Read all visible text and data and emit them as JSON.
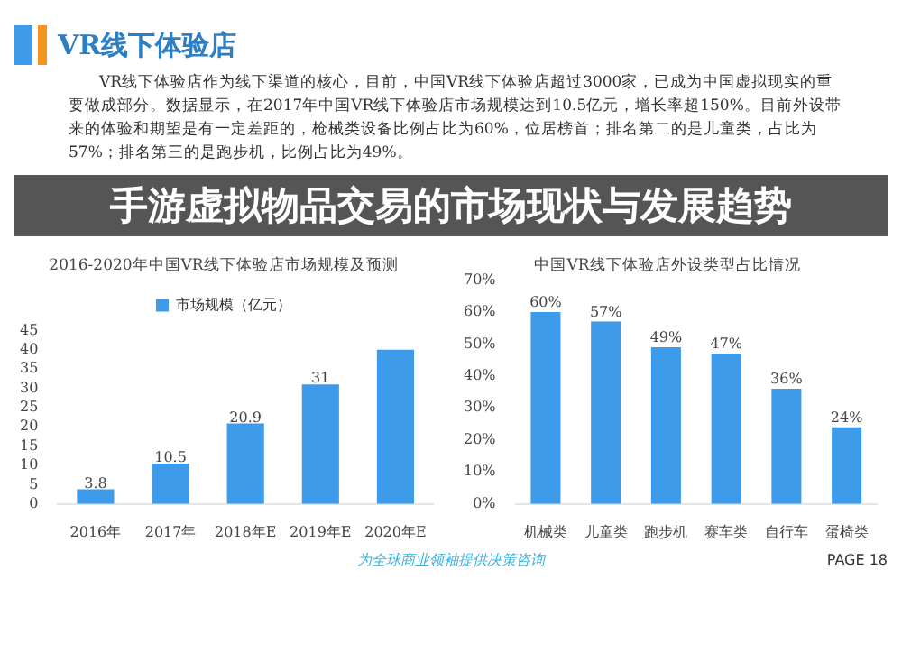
{
  "chart_data": [
    {
      "type": "other",
      "title": "VR线下体验店",
      "annotations": [
        "VR线下体验店作为线下渠道的核心，目前，中国VR线下体验店超过3000家，已成为中国虚拟现实的重要做成部分。数据显示，在2017年中国VR线下体验店市场规模达到10.5亿元，增长率超150%。目前外设带来的体验和期望是有一定差距的，枪械类设备比例占比为60%，位居榜首；排名第二的是儿童类，占比为57%；排名第三的是跑步机，比例占比为49%。",
        "手游虚拟物品交易的市场现状与发展趋势",
        "为全球商业领袖提供决策咨询",
        "PAGE 18"
      ]
    },
    {
      "type": "bar",
      "title": "2016-2020年中国VR线下体验店市场规模及预测",
      "categories": [
        "2016年",
        "2017年",
        "2018年E",
        "2019年E",
        "2020年E"
      ],
      "series": [
        {
          "name": "市场规模（亿元）",
          "color": "#3d9be9",
          "values": [
            3.8,
            10.5,
            20.9,
            31,
            40
          ],
          "value_labels": [
            "3.8",
            "10.5",
            "20.9",
            "31",
            null
          ]
        }
      ],
      "ylim": [
        0,
        45
      ],
      "yticks": [
        0,
        5,
        10,
        15,
        20,
        25,
        30,
        35,
        40,
        45
      ],
      "legend": "top",
      "grid": false
    },
    {
      "type": "bar",
      "title": "中国VR线下体验店外设类型占比情况",
      "categories": [
        "机械类",
        "儿童类",
        "跑步机",
        "赛车类",
        "自行车",
        "蛋椅类"
      ],
      "series": [
        {
          "color": "#3d9be9",
          "values": [
            60,
            57,
            49,
            47,
            36,
            24
          ],
          "value_labels": [
            "60%",
            "57%",
            "49%",
            "47%",
            "36%",
            "24%"
          ]
        }
      ],
      "ylim": [
        0,
        70
      ],
      "yticks": [
        {
          "value": 0,
          "label": "0%"
        },
        {
          "value": 10,
          "label": "10%"
        },
        {
          "value": 20,
          "label": "20%"
        },
        {
          "value": 30,
          "label": "30%"
        },
        {
          "value": 40,
          "label": "40%"
        },
        {
          "value": 50,
          "label": "50%"
        },
        {
          "value": 60,
          "label": "60%"
        },
        {
          "value": 70,
          "label": "70%"
        }
      ],
      "grid": false
    }
  ]
}
